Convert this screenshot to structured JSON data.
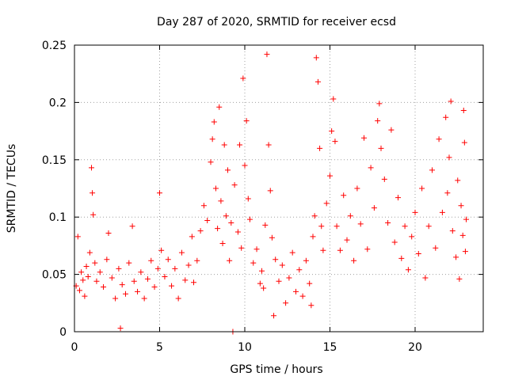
{
  "chart_data": {
    "type": "scatter",
    "title": "Day 287 of 2020, SRMTID for receiver ecsd",
    "xlabel": "GPS time / hours",
    "ylabel": "SRMTID / TECUs",
    "xlim": [
      0,
      24
    ],
    "ylim": [
      0,
      0.25
    ],
    "xticks": [
      0,
      5,
      10,
      15,
      20
    ],
    "xtick_labels": [
      "0",
      "5",
      "10",
      "15",
      "20"
    ],
    "yticks": [
      0,
      0.05,
      0.1,
      0.15,
      0.2,
      0.25
    ],
    "ytick_labels": [
      "0",
      "0.05",
      "0.1",
      "0.15",
      "0.2",
      "0.25"
    ],
    "grid": true,
    "marker": "+",
    "color": "#ff0000",
    "series": [
      {
        "name": "SRMTID",
        "points": [
          [
            0.1,
            0.04
          ],
          [
            0.2,
            0.083
          ],
          [
            0.3,
            0.036
          ],
          [
            0.4,
            0.052
          ],
          [
            0.5,
            0.045
          ],
          [
            0.6,
            0.031
          ],
          [
            0.7,
            0.057
          ],
          [
            0.8,
            0.048
          ],
          [
            0.9,
            0.069
          ],
          [
            1.0,
            0.143
          ],
          [
            1.05,
            0.121
          ],
          [
            1.1,
            0.102
          ],
          [
            1.2,
            0.06
          ],
          [
            1.3,
            0.044
          ],
          [
            1.5,
            0.052
          ],
          [
            1.7,
            0.039
          ],
          [
            1.9,
            0.063
          ],
          [
            2.0,
            0.086
          ],
          [
            2.2,
            0.047
          ],
          [
            2.4,
            0.029
          ],
          [
            2.6,
            0.055
          ],
          [
            2.7,
            0.003
          ],
          [
            2.8,
            0.041
          ],
          [
            3.0,
            0.033
          ],
          [
            3.2,
            0.06
          ],
          [
            3.4,
            0.092
          ],
          [
            3.5,
            0.044
          ],
          [
            3.7,
            0.035
          ],
          [
            3.9,
            0.052
          ],
          [
            4.1,
            0.029
          ],
          [
            4.3,
            0.046
          ],
          [
            4.5,
            0.062
          ],
          [
            4.7,
            0.039
          ],
          [
            4.9,
            0.055
          ],
          [
            5.0,
            0.121
          ],
          [
            5.1,
            0.071
          ],
          [
            5.3,
            0.048
          ],
          [
            5.5,
            0.063
          ],
          [
            5.7,
            0.04
          ],
          [
            5.9,
            0.055
          ],
          [
            6.1,
            0.029
          ],
          [
            6.3,
            0.069
          ],
          [
            6.5,
            0.045
          ],
          [
            6.7,
            0.058
          ],
          [
            6.9,
            0.083
          ],
          [
            7.0,
            0.043
          ],
          [
            7.2,
            0.062
          ],
          [
            7.4,
            0.088
          ],
          [
            7.6,
            0.11
          ],
          [
            7.8,
            0.097
          ],
          [
            8.0,
            0.148
          ],
          [
            8.1,
            0.168
          ],
          [
            8.2,
            0.183
          ],
          [
            8.3,
            0.125
          ],
          [
            8.4,
            0.09
          ],
          [
            8.5,
            0.196
          ],
          [
            8.6,
            0.114
          ],
          [
            8.7,
            0.077
          ],
          [
            8.8,
            0.163
          ],
          [
            8.9,
            0.101
          ],
          [
            9.0,
            0.141
          ],
          [
            9.1,
            0.062
          ],
          [
            9.2,
            0.095
          ],
          [
            9.3,
            0.0
          ],
          [
            9.4,
            0.128
          ],
          [
            9.6,
            0.087
          ],
          [
            9.7,
            0.163
          ],
          [
            9.8,
            0.073
          ],
          [
            9.9,
            0.221
          ],
          [
            10.0,
            0.145
          ],
          [
            10.1,
            0.184
          ],
          [
            10.2,
            0.116
          ],
          [
            10.3,
            0.098
          ],
          [
            10.5,
            0.06
          ],
          [
            10.7,
            0.072
          ],
          [
            10.9,
            0.042
          ],
          [
            11.0,
            0.053
          ],
          [
            11.1,
            0.038
          ],
          [
            11.2,
            0.093
          ],
          [
            11.3,
            0.242
          ],
          [
            11.4,
            0.163
          ],
          [
            11.5,
            0.123
          ],
          [
            11.6,
            0.082
          ],
          [
            11.7,
            0.014
          ],
          [
            11.8,
            0.063
          ],
          [
            12.0,
            0.044
          ],
          [
            12.2,
            0.058
          ],
          [
            12.4,
            0.025
          ],
          [
            12.6,
            0.047
          ],
          [
            12.8,
            0.069
          ],
          [
            13.0,
            0.035
          ],
          [
            13.2,
            0.054
          ],
          [
            13.4,
            0.031
          ],
          [
            13.6,
            0.062
          ],
          [
            13.8,
            0.042
          ],
          [
            13.9,
            0.023
          ],
          [
            14.0,
            0.083
          ],
          [
            14.1,
            0.101
          ],
          [
            14.2,
            0.239
          ],
          [
            14.3,
            0.218
          ],
          [
            14.4,
            0.16
          ],
          [
            14.5,
            0.092
          ],
          [
            14.6,
            0.071
          ],
          [
            14.8,
            0.112
          ],
          [
            15.0,
            0.136
          ],
          [
            15.1,
            0.175
          ],
          [
            15.2,
            0.203
          ],
          [
            15.3,
            0.166
          ],
          [
            15.4,
            0.092
          ],
          [
            15.6,
            0.071
          ],
          [
            15.8,
            0.119
          ],
          [
            16.0,
            0.08
          ],
          [
            16.2,
            0.101
          ],
          [
            16.4,
            0.062
          ],
          [
            16.6,
            0.125
          ],
          [
            16.8,
            0.094
          ],
          [
            17.0,
            0.169
          ],
          [
            17.2,
            0.072
          ],
          [
            17.4,
            0.143
          ],
          [
            17.6,
            0.108
          ],
          [
            17.8,
            0.184
          ],
          [
            17.9,
            0.199
          ],
          [
            18.0,
            0.16
          ],
          [
            18.2,
            0.133
          ],
          [
            18.4,
            0.095
          ],
          [
            18.6,
            0.176
          ],
          [
            18.8,
            0.078
          ],
          [
            19.0,
            0.117
          ],
          [
            19.2,
            0.064
          ],
          [
            19.4,
            0.092
          ],
          [
            19.6,
            0.054
          ],
          [
            19.8,
            0.083
          ],
          [
            20.0,
            0.104
          ],
          [
            20.2,
            0.068
          ],
          [
            20.4,
            0.125
          ],
          [
            20.6,
            0.047
          ],
          [
            20.8,
            0.092
          ],
          [
            21.0,
            0.141
          ],
          [
            21.2,
            0.073
          ],
          [
            21.4,
            0.168
          ],
          [
            21.6,
            0.104
          ],
          [
            21.8,
            0.187
          ],
          [
            21.9,
            0.121
          ],
          [
            22.0,
            0.152
          ],
          [
            22.1,
            0.201
          ],
          [
            22.2,
            0.088
          ],
          [
            22.4,
            0.065
          ],
          [
            22.5,
            0.132
          ],
          [
            22.6,
            0.046
          ],
          [
            22.7,
            0.11
          ],
          [
            22.8,
            0.084
          ],
          [
            22.85,
            0.193
          ],
          [
            22.9,
            0.165
          ],
          [
            22.95,
            0.07
          ],
          [
            23.0,
            0.098
          ]
        ]
      }
    ]
  }
}
